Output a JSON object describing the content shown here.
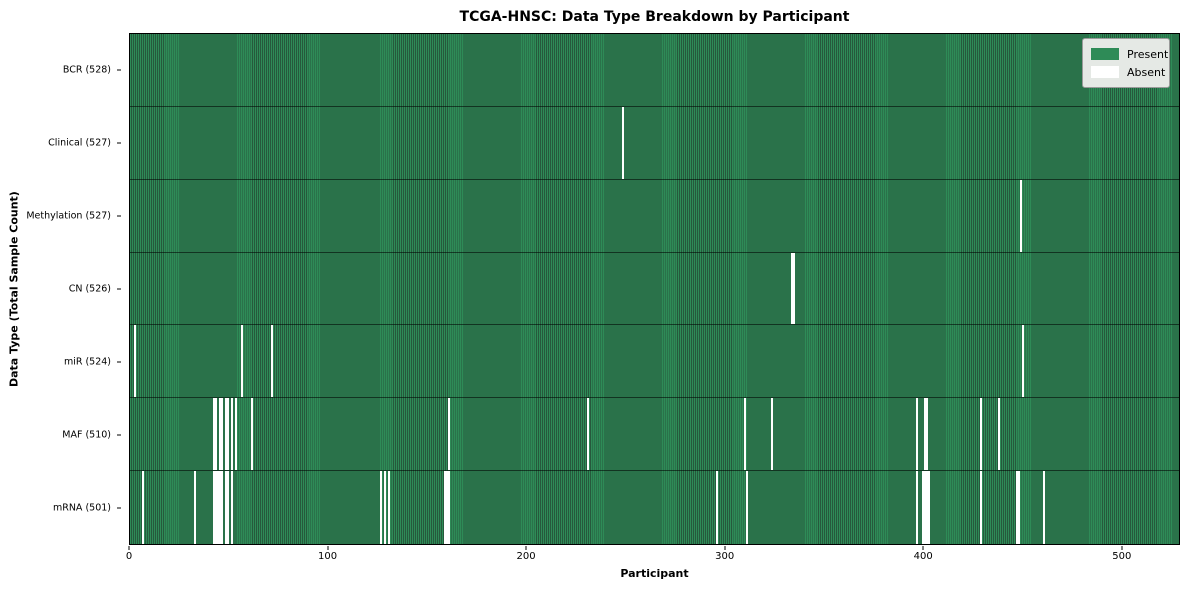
{
  "title": "TCGA-HNSC: Data Type Breakdown by Participant",
  "axes": {
    "xlabel": "Participant",
    "ylabel": "Data Type (Total Sample Count)"
  },
  "legend": {
    "present_label": "Present",
    "absent_label": "Absent"
  },
  "colors": {
    "present": "#2e8b57",
    "present_edge": "#26593c",
    "absent": "#ffffff",
    "row_divider": "rgba(0,0,0,0.55)",
    "axis": "#000000",
    "legend_bg": "#e5e9e5"
  },
  "chart_data": {
    "type": "heatmap",
    "title": "TCGA-HNSC: Data Type Breakdown by Participant",
    "xlabel": "Participant",
    "ylabel": "Data Type (Total Sample Count)",
    "x_range": [
      0,
      528
    ],
    "n_participants": 528,
    "x_ticks": [
      0,
      100,
      200,
      300,
      400,
      500
    ],
    "grid": false,
    "legend_entries": [
      "Present",
      "Absent"
    ],
    "legend_position": "upper right",
    "rows": [
      {
        "name": "BCR",
        "label": "BCR (528)",
        "present_count": 528,
        "absent_participants": []
      },
      {
        "name": "Clinical",
        "label": "Clinical (527)",
        "present_count": 527,
        "absent_participants": [
          248
        ]
      },
      {
        "name": "Methylation",
        "label": "Methylation (527)",
        "present_count": 527,
        "absent_participants": [
          448
        ]
      },
      {
        "name": "CN",
        "label": "CN (526)",
        "present_count": 526,
        "absent_participants": [
          333,
          334
        ]
      },
      {
        "name": "miR",
        "label": "miR (524)",
        "present_count": 524,
        "absent_participants": [
          2,
          56,
          71,
          449
        ]
      },
      {
        "name": "MAF",
        "label": "MAF (510)",
        "present_count": 510,
        "absent_participants": [
          42,
          43,
          45,
          46,
          48,
          49,
          51,
          53,
          61,
          160,
          230,
          309,
          323,
          396,
          400,
          401,
          428,
          437
        ]
      },
      {
        "name": "mRNA",
        "label": "mRNA (501)",
        "present_count": 501,
        "absent_participants": [
          6,
          32,
          42,
          43,
          44,
          45,
          46,
          48,
          49,
          51,
          126,
          128,
          130,
          158,
          159,
          160,
          295,
          310,
          396,
          399,
          400,
          401,
          402,
          428,
          446,
          447,
          460
        ]
      }
    ]
  }
}
